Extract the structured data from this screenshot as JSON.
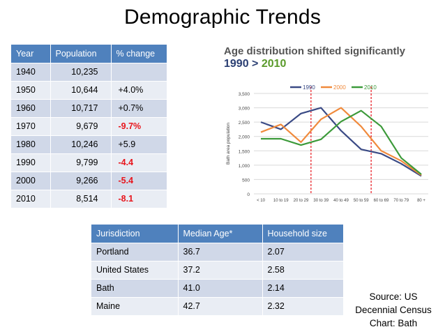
{
  "title": "Demographic Trends",
  "population_table": {
    "headers": [
      "Year",
      "Population",
      "% change"
    ],
    "rows": [
      {
        "year": "1940",
        "population": "10,235",
        "change": "",
        "negative": false
      },
      {
        "year": "1950",
        "population": "10,644",
        "change": "+4.0%",
        "negative": false
      },
      {
        "year": "1960",
        "population": "10,717",
        "change": "+0.7%",
        "negative": false
      },
      {
        "year": "1970",
        "population": "9,679",
        "change": "-9.7%",
        "negative": true
      },
      {
        "year": "1980",
        "population": "10,246",
        "change": "+5.9",
        "negative": false
      },
      {
        "year": "1990",
        "population": "9,799",
        "change": "-4.4",
        "negative": true
      },
      {
        "year": "2000",
        "population": "9,266",
        "change": "-5.4",
        "negative": true
      },
      {
        "year": "2010",
        "population": "8,514",
        "change": "-8.1",
        "negative": true
      }
    ]
  },
  "jurisdiction_table": {
    "headers": [
      "Jurisdiction",
      "Median Age*",
      "Household size"
    ],
    "rows": [
      [
        "Portland",
        "36.7",
        "2.07"
      ],
      [
        "United States",
        "37.2",
        "2.58"
      ],
      [
        "Bath",
        "41.0",
        "2.14"
      ],
      [
        "Maine",
        "42.7",
        "2.32"
      ]
    ]
  },
  "source": {
    "line1": "Source: US",
    "line2": "Decennial Census",
    "line3": "Chart: Bath"
  },
  "chart_data": {
    "type": "line",
    "title": "Age distribution shifted significantly",
    "subtitle_part1": "1990 > ",
    "subtitle_part2": "2010",
    "ylabel": "Bath area population",
    "xlabel": "",
    "categories": [
      "< 10",
      "10 to 19",
      "20 to 29",
      "30 to 39",
      "40 to 49",
      "50 to 59",
      "60 to 69",
      "70 to 79",
      "80 +"
    ],
    "ylim": [
      0,
      3500
    ],
    "yticks": [
      0,
      500,
      1000,
      1500,
      2000,
      2500,
      3000,
      3500
    ],
    "ytick_labels": [
      "0",
      "500",
      "1,000",
      "1,500",
      "2,000",
      "2,500",
      "3,000",
      "3,500"
    ],
    "grid": true,
    "legend_position": "top",
    "series": [
      {
        "name": "1990",
        "color": "#3a4a85",
        "values": [
          2500,
          2250,
          2800,
          3000,
          2200,
          1550,
          1400,
          1050,
          620
        ]
      },
      {
        "name": "2000",
        "color": "#f08a3c",
        "values": [
          2150,
          2420,
          1800,
          2600,
          3000,
          2350,
          1500,
          1150,
          650
        ]
      },
      {
        "name": "2010",
        "color": "#3c9a3a",
        "values": [
          1920,
          1920,
          1700,
          1900,
          2520,
          2900,
          2350,
          1250,
          680
        ]
      }
    ],
    "reference_lines_between": [
      [
        2,
        3
      ],
      [
        5,
        6
      ]
    ],
    "reference_line_color": "#e8141b"
  }
}
